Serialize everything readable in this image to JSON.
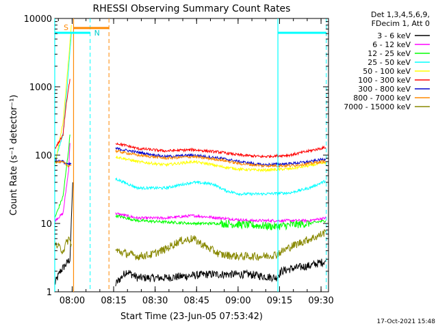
{
  "chart_data": {
    "type": "line",
    "title": "RHESSI Observing Summary Count Rates",
    "xlabel": "Start Time (23-Jun-05 07:53:42)",
    "ylabel": "Count Rate (s⁻¹ detector⁻¹)",
    "yscale": "log",
    "ylim": [
      1,
      10000
    ],
    "xlim_minutes_after_start": [
      0,
      99
    ],
    "x_ticks": [
      {
        "label": "08:00",
        "t": 6.3
      },
      {
        "label": "08:15",
        "t": 21.3
      },
      {
        "label": "08:30",
        "t": 36.3
      },
      {
        "label": "08:45",
        "t": 51.3
      },
      {
        "label": "09:00",
        "t": 66.3
      },
      {
        "label": "09:15",
        "t": 81.3
      },
      {
        "label": "09:30",
        "t": 96.3
      }
    ],
    "y_ticks": [
      {
        "label": "1",
        "v": 1
      },
      {
        "label": "10",
        "v": 10
      },
      {
        "label": "100",
        "v": 100
      },
      {
        "label": "1000",
        "v": 1000
      },
      {
        "label": "10000",
        "v": 10000
      }
    ],
    "legend_header": [
      "Det 1,3,4,5,6,9,",
      "FDecim 1, Att 0"
    ],
    "legend_position": "right",
    "series": [
      {
        "name": "3 - 6 keV",
        "color": "#000000",
        "x": [
          0,
          2,
          4,
          5.5,
          6.5,
          15,
          22,
          26,
          30,
          40,
          55,
          70,
          80,
          82,
          86,
          92,
          98
        ],
        "y": [
          1.3,
          2,
          2.5,
          3,
          40,
          null,
          1.3,
          2,
          1.6,
          1.6,
          1.8,
          1.8,
          1.6,
          2,
          2.2,
          2.4,
          2.8
        ]
      },
      {
        "name": "6 - 12 keV",
        "color": "#ff00ff",
        "x": [
          0,
          3,
          5,
          5.5,
          15,
          22,
          30,
          40,
          50,
          60,
          70,
          75,
          85,
          92,
          98
        ],
        "y": [
          11,
          14,
          60,
          150,
          null,
          14,
          12,
          12,
          13,
          12,
          11,
          11,
          11,
          11,
          12
        ]
      },
      {
        "name": "12 - 25 keV",
        "color": "#00ff00",
        "x": [
          0,
          3,
          5,
          5.5,
          15,
          22,
          30,
          40,
          50,
          60,
          70,
          80,
          85,
          92,
          98
        ],
        "y": [
          12,
          25,
          120,
          200,
          null,
          13,
          11,
          10.5,
          10,
          10,
          9.5,
          9,
          9.5,
          10,
          11
        ]
      },
      {
        "name": "25 - 50 keV",
        "color": "#00ffff",
        "x": [
          0,
          3,
          5,
          6,
          15,
          22,
          30,
          40,
          50,
          57,
          62,
          67,
          75,
          85,
          92,
          98
        ],
        "y": [
          80,
          200,
          1800,
          6000,
          null,
          45,
          33,
          33,
          40,
          38,
          30,
          27,
          27,
          28,
          33,
          42
        ]
      },
      {
        "name": "50 - 100 keV",
        "color": "#ffff00",
        "x": [
          0,
          3,
          5,
          6,
          15,
          22,
          30,
          40,
          50,
          55,
          60,
          67,
          75,
          85,
          92,
          98
        ],
        "y": [
          70,
          300,
          2500,
          8000,
          null,
          95,
          80,
          72,
          80,
          75,
          68,
          62,
          60,
          63,
          70,
          78
        ]
      },
      {
        "name": "100 - 300 keV",
        "color": "#ff0000",
        "x": [
          0,
          3,
          4,
          5.5,
          15,
          22,
          30,
          40,
          50,
          60,
          67,
          75,
          85,
          92,
          98
        ],
        "y": [
          120,
          200,
          500,
          1300,
          null,
          150,
          125,
          115,
          120,
          110,
          100,
          95,
          100,
          115,
          130
        ]
      },
      {
        "name": "300 - 800 keV",
        "color": "#0000cc",
        "x": [
          0,
          3,
          5,
          6,
          15,
          22,
          30,
          40,
          50,
          60,
          67,
          75,
          85,
          92,
          98
        ],
        "y": [
          85,
          80,
          72,
          75,
          null,
          125,
          110,
          95,
          100,
          90,
          80,
          72,
          75,
          80,
          88
        ]
      },
      {
        "name": "800 - 7000 keV",
        "color": "#ff8800",
        "x": [
          0,
          3,
          5,
          6,
          15,
          22,
          30,
          40,
          50,
          60,
          67,
          75,
          85,
          92,
          98
        ],
        "y": [
          80,
          78,
          70,
          72,
          null,
          115,
          100,
          90,
          95,
          85,
          75,
          70,
          70,
          75,
          82
        ]
      },
      {
        "name": "7000 - 15000 keV",
        "color": "#888800",
        "x": [
          0,
          3,
          5,
          6,
          15,
          22,
          30,
          35,
          40,
          45,
          50,
          55,
          60,
          67,
          75,
          80,
          85,
          90,
          95,
          98
        ],
        "y": [
          5,
          4,
          6,
          5,
          null,
          4,
          3.3,
          3.5,
          4.2,
          5.5,
          6,
          4.5,
          3.5,
          3.3,
          3.3,
          3.5,
          4.5,
          5.5,
          6.5,
          7.5
        ]
      }
    ],
    "annotations": {
      "orange_vertical_solid_at": 6.8,
      "orange_vertical_dashed_at": 19.6,
      "cyan_vertical_solid_at": [
        0,
        80.7
      ],
      "cyan_vertical_dashed_at": [
        12.8,
        98.2
      ],
      "cyan_bar": [
        {
          "from": 0,
          "to": 12.8,
          "label": ""
        },
        {
          "from": 80.7,
          "to": 98.2,
          "label": ""
        }
      ],
      "cyan_bar_label": "N",
      "orange_bar": {
        "from": 6.8,
        "to": 19.6
      },
      "orange_bar_label": "S"
    }
  },
  "timestamp": "17-Oct-2021 15:48"
}
